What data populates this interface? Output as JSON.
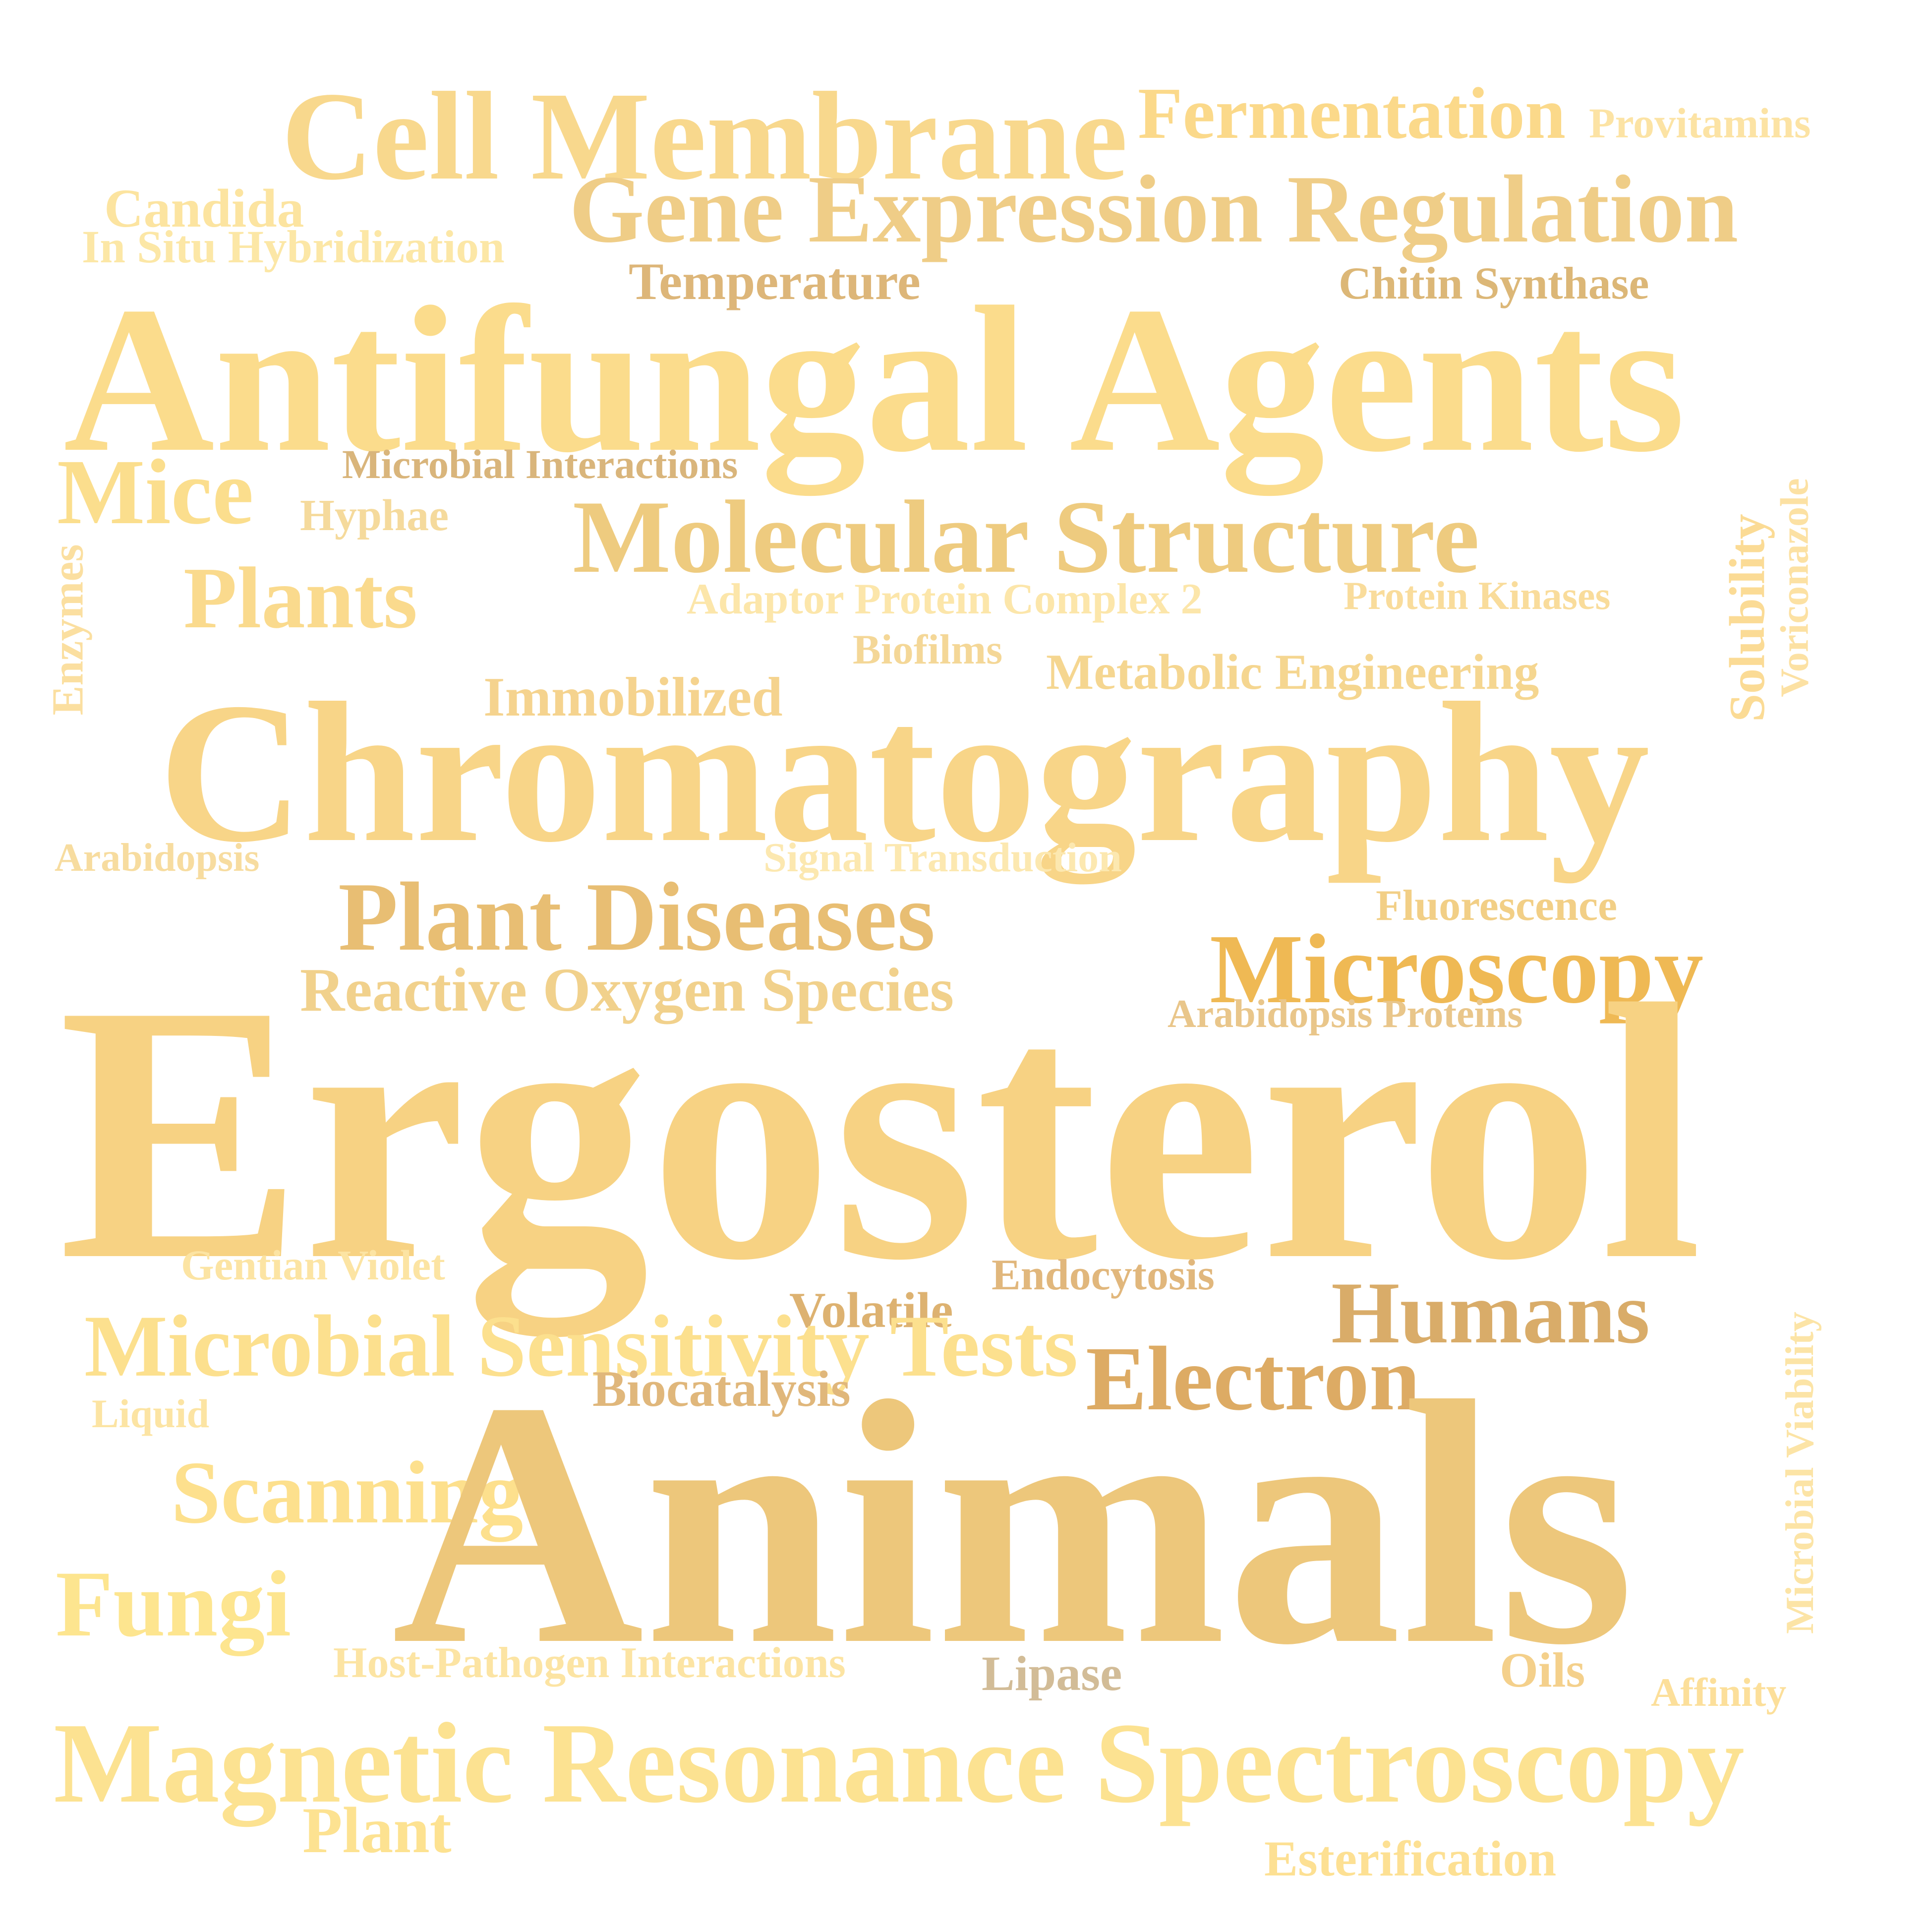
{
  "words": [
    {
      "id": "ergosterol",
      "text": "Ergosterol",
      "color": "#F7D283"
    },
    {
      "id": "animals",
      "text": "Animals",
      "color": "#EDC77B"
    },
    {
      "id": "chromatography",
      "text": "Chromatography",
      "color": "#F8D588"
    },
    {
      "id": "antifungal-agents",
      "text": "Antifungal Agents",
      "color": "#FBDC8C"
    },
    {
      "id": "gene-expression-regulation",
      "text": "Gene Expression Regulation",
      "color": "#EFCD87"
    },
    {
      "id": "cell-membrane",
      "text": "Cell Membrane",
      "color": "#F8D88D"
    },
    {
      "id": "magnetic-resonance-spectroscopy",
      "text": "Magnetic Resonance Spectroscopy",
      "color": "#FCE291"
    },
    {
      "id": "molecular-structure",
      "text": "Molecular Structure",
      "color": "#EECB7F"
    },
    {
      "id": "plant-diseases",
      "text": "Plant Diseases",
      "color": "#E8BE73"
    },
    {
      "id": "microscopy",
      "text": "Microscopy",
      "color": "#EFB954"
    },
    {
      "id": "electron",
      "text": "Electron",
      "color": "#DDAB64"
    },
    {
      "id": "humans",
      "text": "Humans",
      "color": "#D9AC69"
    },
    {
      "id": "microbial-sensitivity-tests",
      "text": "Microbial Sensitivity Tests",
      "color": "#FCE08E"
    },
    {
      "id": "reactive-oxygen-species",
      "text": "Reactive Oxygen Species",
      "color": "#F1D18C"
    },
    {
      "id": "scanning",
      "text": "Scanning",
      "color": "#FDE08D"
    },
    {
      "id": "plants",
      "text": "Plants",
      "color": "#FADA8D"
    },
    {
      "id": "mice",
      "text": "Mice",
      "color": "#FBDE8D"
    },
    {
      "id": "fungi",
      "text": "Fungi",
      "color": "#FDE58F"
    },
    {
      "id": "plant",
      "text": "Plant",
      "color": "#FDE291"
    },
    {
      "id": "fermentation",
      "text": "Fermentation",
      "color": "#FBD98A"
    },
    {
      "id": "temperature",
      "text": "Temperature",
      "color": "#DDB679"
    },
    {
      "id": "chitin-synthase",
      "text": "Chitin Synthase",
      "color": "#DCB777"
    },
    {
      "id": "provitamins",
      "text": "Provitamins",
      "color": "#FCE3A4"
    },
    {
      "id": "candida",
      "text": "Candida",
      "color": "#FCE4A0"
    },
    {
      "id": "in-situ-hybridization",
      "text": "In Situ Hybridization",
      "color": "#FCE7A6"
    },
    {
      "id": "microbial-interactions",
      "text": "Microbial Interactions",
      "color": "#D9B57B"
    },
    {
      "id": "hyphae",
      "text": "Hyphae",
      "color": "#F5DA9C"
    },
    {
      "id": "adaptor-protein-complex-2",
      "text": "Adaptor Protein Complex 2",
      "color": "#FCE6AA"
    },
    {
      "id": "protein-kinases",
      "text": "Protein Kinases",
      "color": "#F9DC9B"
    },
    {
      "id": "biofilms",
      "text": "Biofilms",
      "color": "#F4D797"
    },
    {
      "id": "metabolic-engineering",
      "text": "Metabolic Engineering",
      "color": "#F5D690"
    },
    {
      "id": "immobilized",
      "text": "Immobilized",
      "color": "#F5D38E"
    },
    {
      "id": "arabidopsis",
      "text": "Arabidopsis",
      "color": "#F7DC9F"
    },
    {
      "id": "signal-transduction",
      "text": "Signal Transduction",
      "color": "#FCE8B0"
    },
    {
      "id": "fluorescence",
      "text": "Fluorescence",
      "color": "#F2CF86"
    },
    {
      "id": "arabidopsis-proteins",
      "text": "Arabidopsis Proteins",
      "color": "#E9C68A"
    },
    {
      "id": "gentian-violet",
      "text": "Gentian Violet",
      "color": "#FCE4A3"
    },
    {
      "id": "endocytosis",
      "text": "Endocytosis",
      "color": "#E1B77C"
    },
    {
      "id": "volatile",
      "text": "Volatile",
      "color": "#DDB271"
    },
    {
      "id": "biocatalysis",
      "text": "Biocatalysis",
      "color": "#E0B77B"
    },
    {
      "id": "liquid",
      "text": "Liquid",
      "color": "#FCE4A3"
    },
    {
      "id": "host-pathogen-interactions",
      "text": "Host-Pathogen Interactions",
      "color": "#FCE4A3"
    },
    {
      "id": "lipase",
      "text": "Lipase",
      "color": "#D2BC97"
    },
    {
      "id": "oils",
      "text": "Oils",
      "color": "#F4D08B"
    },
    {
      "id": "affinity",
      "text": "Affinity",
      "color": "#FCDF9A"
    },
    {
      "id": "esterification",
      "text": "Esterification",
      "color": "#FDE093"
    },
    {
      "id": "enzymes",
      "text": "Enzymes",
      "color": "#FBDFA0"
    },
    {
      "id": "solubility",
      "text": "Solubility",
      "color": "#FBDB95"
    },
    {
      "id": "voriconazole",
      "text": "Voriconazole",
      "color": "#FCE1A3"
    },
    {
      "id": "microbial-viability",
      "text": "Microbial Viability",
      "color": "#FCE4A6"
    }
  ]
}
